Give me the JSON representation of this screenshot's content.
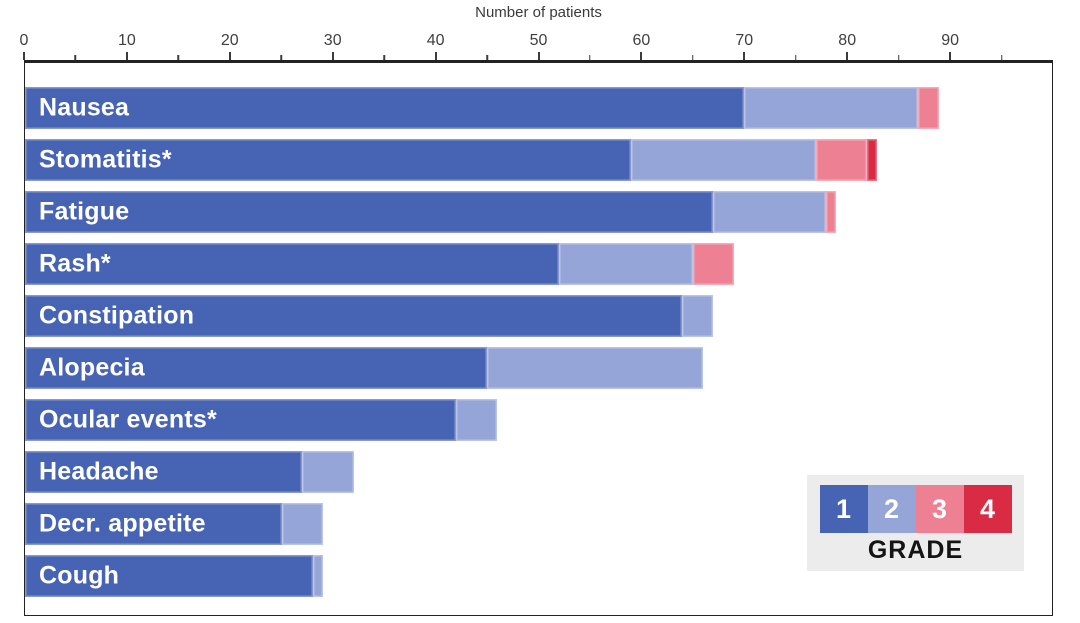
{
  "chart_data": {
    "type": "bar",
    "orientation": "horizontal",
    "stacked": true,
    "xlabel": "Number of patients",
    "xlim": [
      0,
      100
    ],
    "x_major_ticks": [
      0,
      10,
      20,
      30,
      40,
      50,
      60,
      70,
      80,
      90
    ],
    "x_minor_ticks": [
      5,
      15,
      25,
      35,
      45,
      55,
      65,
      75,
      85,
      95
    ],
    "grid": false,
    "legend_position": "lower right",
    "categories": [
      "Nausea",
      "Stomatitis*",
      "Fatigue",
      "Rash*",
      "Constipation",
      "Alopecia",
      "Ocular events*",
      "Headache",
      "Decr. appetite",
      "Cough"
    ],
    "series": [
      {
        "name": "Grade 1",
        "color": "#4763b4",
        "values": [
          70,
          59,
          67,
          52,
          64,
          45,
          42,
          27,
          25,
          28
        ]
      },
      {
        "name": "Grade 2",
        "color": "#96a5d8",
        "values": [
          17,
          18,
          11,
          13,
          3,
          21,
          4,
          5,
          4,
          1
        ]
      },
      {
        "name": "Grade 3",
        "color": "#ee8093",
        "values": [
          2,
          5,
          1,
          4,
          0,
          0,
          0,
          0,
          0,
          0
        ]
      },
      {
        "name": "Grade 4",
        "color": "#d92b43",
        "values": [
          0,
          1,
          0,
          0,
          0,
          0,
          0,
          0,
          0,
          0
        ]
      }
    ],
    "totals": [
      89,
      83,
      79,
      69,
      67,
      66,
      46,
      32,
      29,
      29
    ]
  },
  "axis": {
    "title": "Number of patients"
  },
  "legend": {
    "title": "GRADE",
    "items": [
      {
        "label": "1",
        "color": "#4763b4"
      },
      {
        "label": "2",
        "color": "#96a5d8"
      },
      {
        "label": "3",
        "color": "#ee8093"
      },
      {
        "label": "4",
        "color": "#d92b43"
      }
    ]
  }
}
